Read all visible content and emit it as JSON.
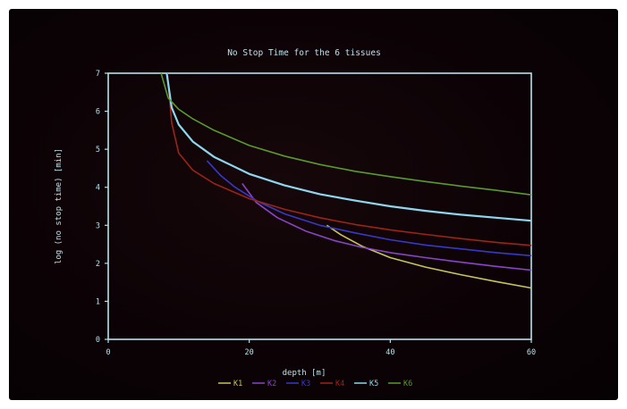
{
  "chart_data": {
    "type": "line",
    "title": "No Stop Time for the 6 tissues",
    "xlabel": "depth [m]",
    "ylabel": "log (no stop time) [min]",
    "xlim": [
      0,
      60
    ],
    "ylim": [
      0,
      7
    ],
    "xticks": [
      0,
      20,
      40,
      60
    ],
    "yticks": [
      0,
      1,
      2,
      3,
      4,
      5,
      6,
      7
    ],
    "grid": false,
    "legend": "bottom",
    "axis_color": "#b8e2ec",
    "series": [
      {
        "name": "K1",
        "color": "#c8c45a",
        "x": [
          31,
          33,
          36,
          40,
          45,
          50,
          55,
          60
        ],
        "y": [
          3.0,
          2.75,
          2.45,
          2.15,
          1.9,
          1.7,
          1.52,
          1.35
        ]
      },
      {
        "name": "K2",
        "color": "#8a44c8",
        "x": [
          19,
          21,
          24,
          28,
          32,
          36,
          40,
          45,
          50,
          55,
          60
        ],
        "y": [
          4.1,
          3.6,
          3.2,
          2.85,
          2.6,
          2.42,
          2.28,
          2.15,
          2.03,
          1.92,
          1.82
        ]
      },
      {
        "name": "K3",
        "color": "#3838c8",
        "x": [
          14,
          16,
          18,
          21,
          25,
          30,
          35,
          40,
          45,
          50,
          55,
          60
        ],
        "y": [
          4.7,
          4.3,
          4.0,
          3.65,
          3.3,
          3.0,
          2.8,
          2.62,
          2.48,
          2.38,
          2.28,
          2.2
        ]
      },
      {
        "name": "K4",
        "color": "#9a2418",
        "x": [
          8.4,
          9,
          10,
          12,
          15,
          20,
          25,
          30,
          35,
          40,
          45,
          50,
          55,
          60
        ],
        "y": [
          7.0,
          5.7,
          4.9,
          4.45,
          4.1,
          3.7,
          3.42,
          3.2,
          3.02,
          2.88,
          2.76,
          2.65,
          2.55,
          2.47
        ]
      },
      {
        "name": "K5",
        "color": "#8ed6ee",
        "x": [
          8.3,
          9,
          10,
          12,
          15,
          20,
          25,
          30,
          35,
          40,
          45,
          50,
          55,
          60
        ],
        "y": [
          7.0,
          6.1,
          5.65,
          5.2,
          4.8,
          4.35,
          4.05,
          3.82,
          3.65,
          3.5,
          3.38,
          3.28,
          3.2,
          3.12
        ]
      },
      {
        "name": "K6",
        "color": "#5a9a2a",
        "x": [
          7.5,
          8.5,
          10,
          12,
          15,
          20,
          25,
          30,
          35,
          40,
          45,
          50,
          55,
          60
        ],
        "y": [
          7.0,
          6.35,
          6.05,
          5.8,
          5.5,
          5.1,
          4.82,
          4.6,
          4.42,
          4.28,
          4.15,
          4.03,
          3.92,
          3.8
        ]
      }
    ]
  }
}
